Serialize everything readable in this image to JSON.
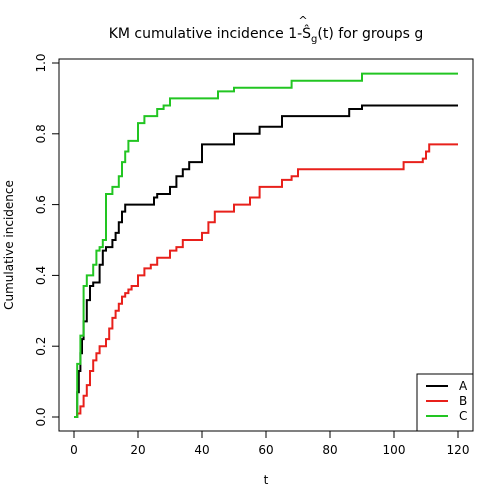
{
  "chart_data": {
    "type": "line",
    "step": true,
    "title": "KM cumulative incidence 1-Ŝ",
    "title_sub": "g",
    "title_tail": "(t) for groups g",
    "xlabel": "t",
    "ylabel": "Cumulative incidence",
    "xlim": [
      0,
      120
    ],
    "ylim": [
      0,
      1
    ],
    "xticks": [
      0,
      20,
      40,
      60,
      80,
      100,
      120
    ],
    "yticks": [
      0.0,
      0.2,
      0.4,
      0.6,
      0.8,
      1.0
    ],
    "xtick_labels": [
      "0",
      "20",
      "40",
      "60",
      "80",
      "100",
      "120"
    ],
    "ytick_labels": [
      "0.0",
      "0.2",
      "0.4",
      "0.6",
      "0.8",
      "1.0"
    ],
    "grid": false,
    "legend_position": "bottom-right",
    "series": [
      {
        "name": "A",
        "color": "#000000",
        "x": [
          0,
          1,
          1.5,
          2,
          2.5,
          3,
          4,
          5,
          6,
          8,
          9,
          10,
          12,
          13,
          14,
          15,
          16,
          17,
          18,
          22,
          25,
          26,
          28,
          30,
          32,
          34,
          36,
          40,
          45,
          50,
          52,
          58,
          65,
          67,
          75,
          86,
          90,
          120
        ],
        "y": [
          0,
          0.07,
          0.13,
          0.18,
          0.22,
          0.27,
          0.33,
          0.37,
          0.38,
          0.43,
          0.47,
          0.48,
          0.5,
          0.52,
          0.55,
          0.58,
          0.6,
          0.6,
          0.6,
          0.6,
          0.62,
          0.63,
          0.63,
          0.65,
          0.68,
          0.7,
          0.72,
          0.77,
          0.77,
          0.8,
          0.8,
          0.82,
          0.85,
          0.85,
          0.85,
          0.87,
          0.88,
          0.88
        ]
      },
      {
        "name": "B",
        "color": "#e8201b",
        "x": [
          0,
          1,
          2,
          3,
          4,
          5,
          6,
          7,
          8,
          10,
          11,
          12,
          13,
          14,
          15,
          16,
          17,
          18,
          20,
          22,
          23,
          24,
          26,
          28,
          30,
          32,
          34,
          37,
          40,
          42,
          44,
          48,
          50,
          55,
          58,
          62,
          65,
          68,
          70,
          80,
          103,
          109,
          110,
          111,
          112,
          120
        ],
        "y": [
          0,
          0.01,
          0.03,
          0.06,
          0.09,
          0.13,
          0.16,
          0.18,
          0.2,
          0.22,
          0.25,
          0.28,
          0.3,
          0.32,
          0.34,
          0.35,
          0.36,
          0.37,
          0.4,
          0.42,
          0.42,
          0.43,
          0.45,
          0.45,
          0.47,
          0.48,
          0.5,
          0.5,
          0.52,
          0.55,
          0.58,
          0.58,
          0.6,
          0.62,
          0.65,
          0.65,
          0.67,
          0.68,
          0.7,
          0.7,
          0.72,
          0.73,
          0.75,
          0.77,
          0.77,
          0.77
        ]
      },
      {
        "name": "C",
        "color": "#22c522",
        "x": [
          0,
          1,
          2,
          3,
          4,
          6,
          7,
          8,
          9,
          10,
          12,
          14,
          15,
          16,
          17,
          18,
          20,
          22,
          24,
          26,
          28,
          30,
          40,
          45,
          48,
          50,
          60,
          68,
          80,
          90,
          120
        ],
        "y": [
          0,
          0.15,
          0.23,
          0.37,
          0.4,
          0.43,
          0.47,
          0.48,
          0.5,
          0.63,
          0.65,
          0.68,
          0.72,
          0.75,
          0.78,
          0.78,
          0.83,
          0.85,
          0.85,
          0.87,
          0.88,
          0.9,
          0.9,
          0.92,
          0.92,
          0.93,
          0.93,
          0.95,
          0.95,
          0.97,
          0.97
        ]
      }
    ]
  }
}
